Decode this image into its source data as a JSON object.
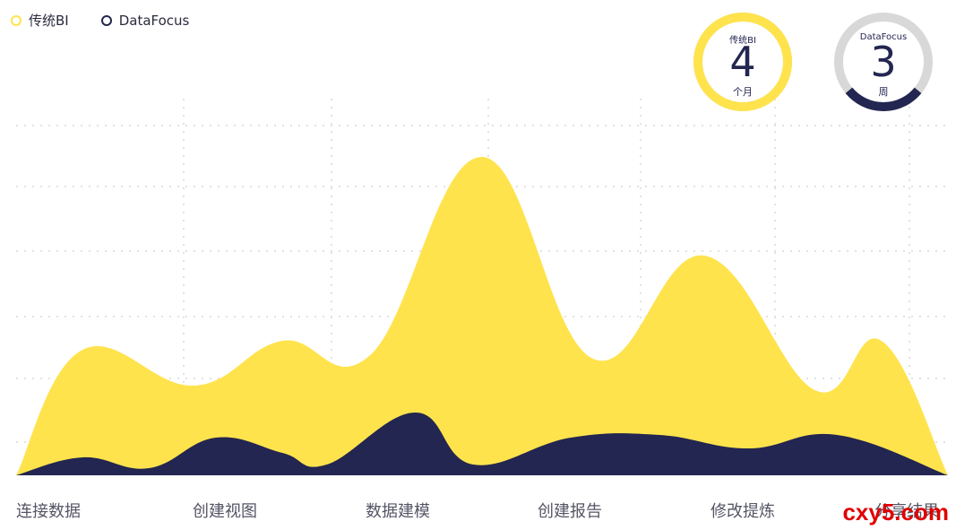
{
  "chart_data": {
    "type": "area",
    "categories": [
      "连接数据",
      "创建视图",
      "数据建模",
      "创建报告",
      "修改提炼",
      "分享结果"
    ],
    "series": [
      {
        "name": "传统BI",
        "color": "#ffe34d",
        "points": [
          [
            0,
            0
          ],
          [
            1.5,
            140
          ],
          [
            4,
            100
          ],
          [
            6,
            150
          ],
          [
            8,
            135
          ],
          [
            10.5,
            355
          ],
          [
            13,
            130
          ],
          [
            15.5,
            245
          ],
          [
            18,
            95
          ],
          [
            19.5,
            150
          ],
          [
            21,
            0
          ]
        ]
      },
      {
        "name": "DataFocus",
        "color": "#232650",
        "points": [
          [
            0,
            0
          ],
          [
            1.5,
            20
          ],
          [
            3,
            8
          ],
          [
            4.5,
            42
          ],
          [
            6,
            25
          ],
          [
            7,
            12
          ],
          [
            9,
            70
          ],
          [
            10.3,
            12
          ],
          [
            12.5,
            42
          ],
          [
            14.5,
            45
          ],
          [
            16.5,
            30
          ],
          [
            18.5,
            45
          ],
          [
            21,
            0
          ]
        ]
      }
    ],
    "ylim": [
      0,
      420
    ],
    "grid": true,
    "legend_position": "top-left"
  },
  "legend": {
    "items": [
      {
        "label": "传统BI",
        "color": "#ffe34d"
      },
      {
        "label": "DataFocus",
        "color": "#232650"
      }
    ]
  },
  "gauges": [
    {
      "name": "传统BI",
      "value": "4",
      "unit": "个月",
      "fill_fraction": 1.0,
      "color": "#ffe34d"
    },
    {
      "name": "DataFocus",
      "value": "3",
      "unit": "周",
      "fill_fraction": 0.28,
      "color": "#232650"
    }
  ],
  "watermark": "cxy5.com"
}
